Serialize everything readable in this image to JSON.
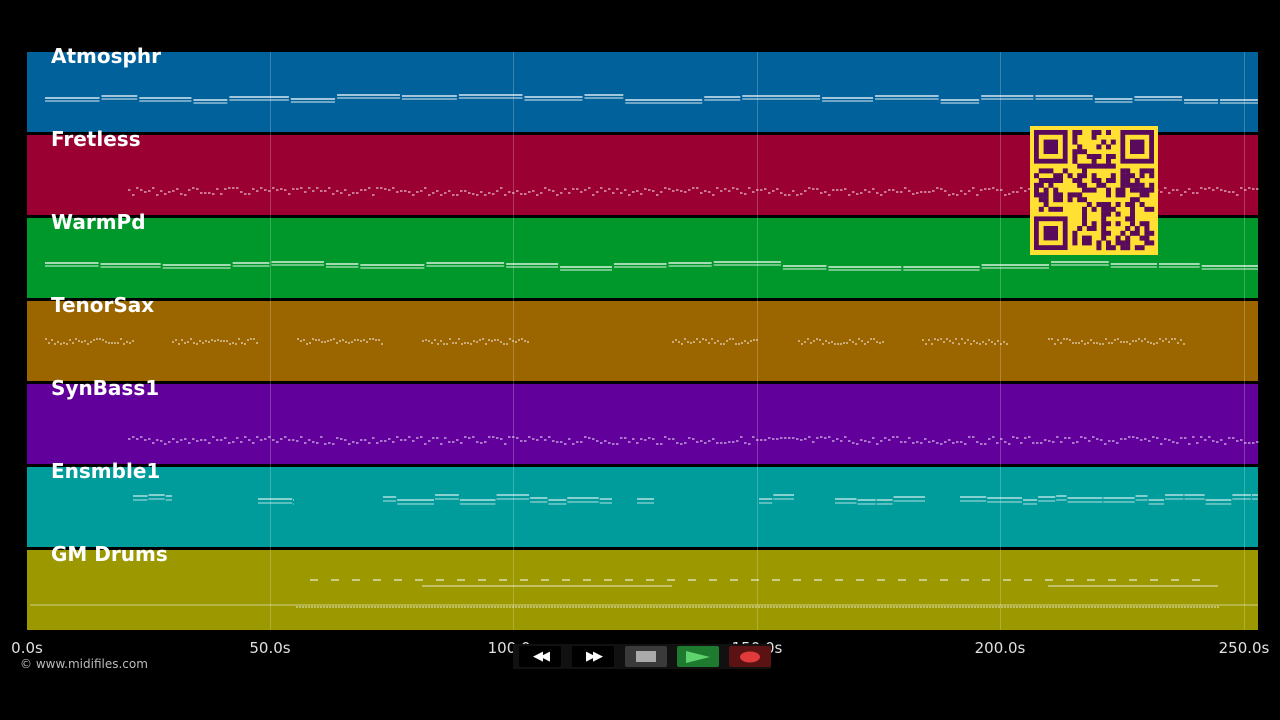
{
  "tracks": [
    {
      "name": "Atmosphr",
      "color": "#00619b"
    },
    {
      "name": "Fretless",
      "color": "#9b0032"
    },
    {
      "name": "WarmPd",
      "color": "#00982a"
    },
    {
      "name": "TenorSax",
      "color": "#9b6500"
    },
    {
      "name": "SynBass1",
      "color": "#62009b"
    },
    {
      "name": "Ensmble1",
      "color": "#009b9b"
    },
    {
      "name": "GM Drums",
      "color": "#9b9800"
    }
  ],
  "timeline": {
    "ticks": [
      "0.0s",
      "50.0s",
      "100.0s",
      "150.0s",
      "200.0s",
      "250.0s"
    ],
    "tick_values": [
      0,
      50,
      100,
      150,
      200,
      250
    ]
  },
  "credit": "© www.midifiles.com",
  "transport": {
    "buttons": [
      {
        "name": "rewind-button",
        "icon": "rewind-icon",
        "glyph": "◀◀"
      },
      {
        "name": "fast-forward-button",
        "icon": "fast-forward-icon",
        "glyph": "▶▶"
      },
      {
        "name": "stop-button",
        "icon": "stop-icon",
        "glyph": ""
      },
      {
        "name": "play-button",
        "icon": "play-icon",
        "glyph": ""
      },
      {
        "name": "record-button",
        "icon": "record-icon",
        "glyph": ""
      }
    ]
  },
  "qr": {
    "icon": "qr-code-icon",
    "bg": "#ffe033",
    "fg": "#5a0a5a"
  }
}
